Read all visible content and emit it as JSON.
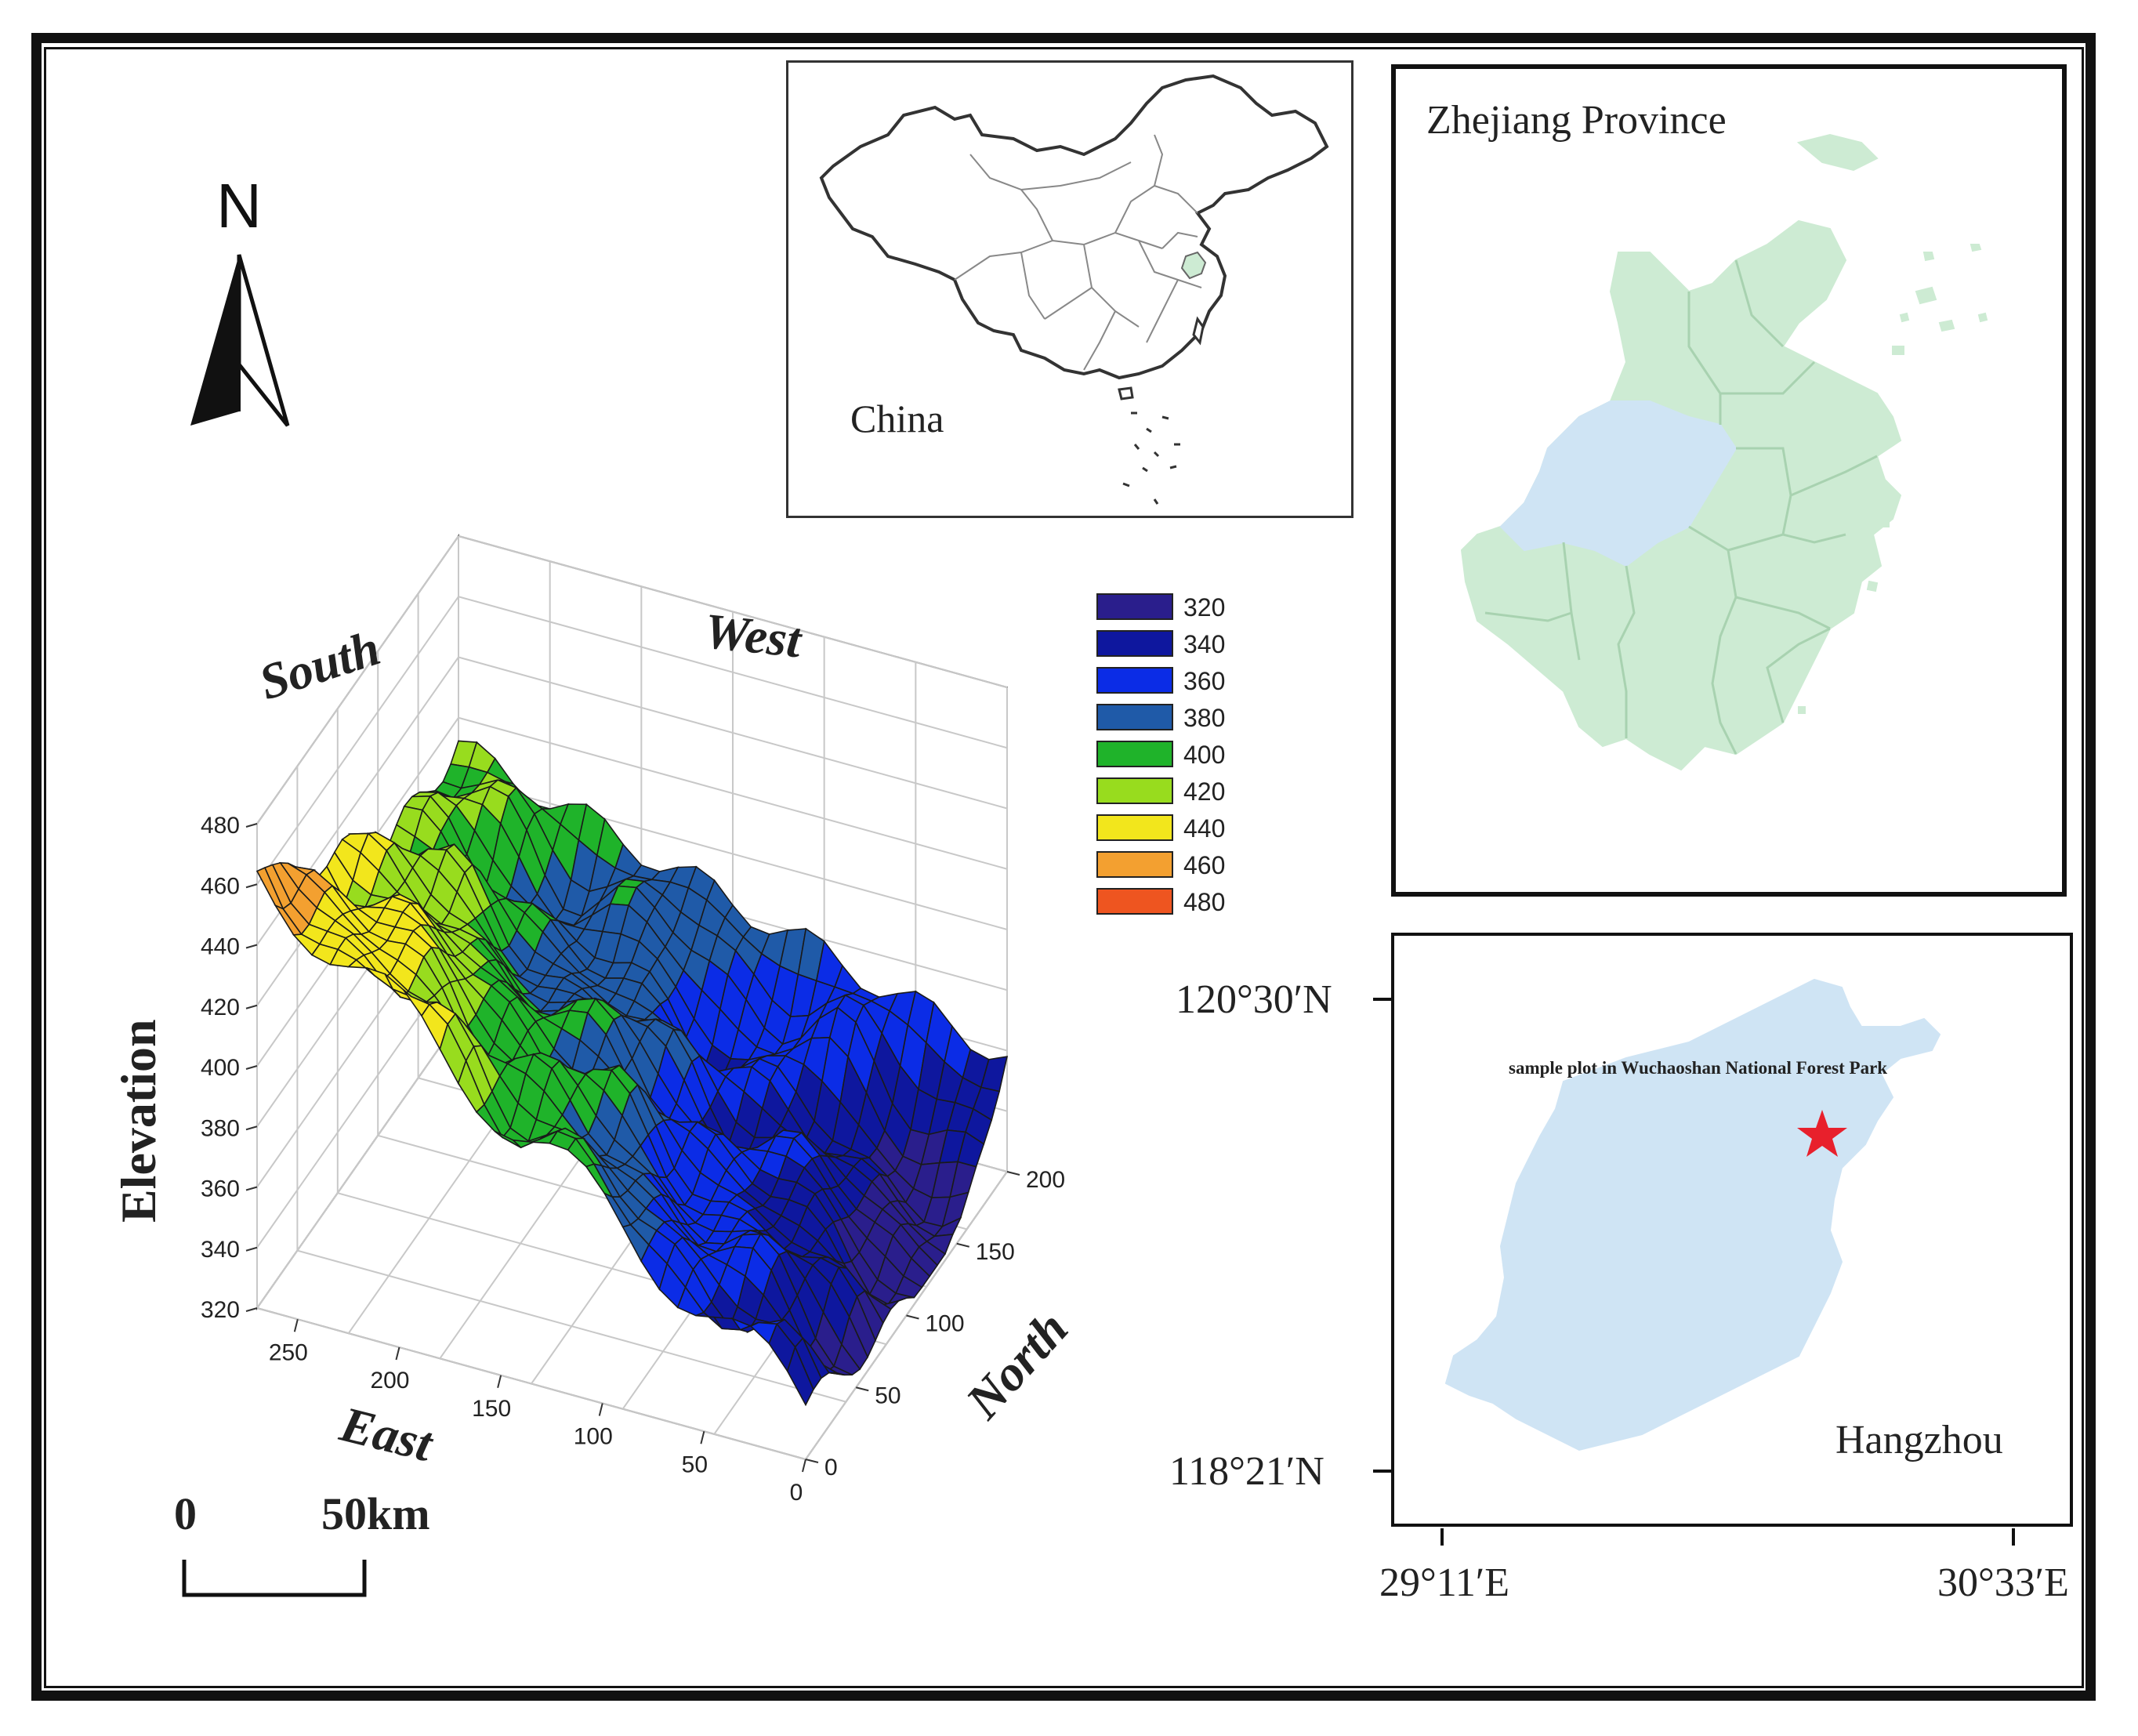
{
  "north_arrow": {
    "letter": "N"
  },
  "scale_bar": {
    "start_label": "0",
    "end_label": "50km"
  },
  "china_inset": {
    "label": "China"
  },
  "zhejiang_inset": {
    "label": "Zhejiang Province"
  },
  "hangzhou_inset": {
    "label": "Hangzhou",
    "site_label": "sample plot in Wuchaoshan National Forest Park",
    "lat_ticks": [
      "120°30′N",
      "118°21′N"
    ],
    "lon_ticks": [
      "29°11′E",
      "30°33′E"
    ],
    "marker_color": "#e8202c"
  },
  "colors": {
    "frame": "#111111",
    "zhejiang_fill": "#cdebd3",
    "hangzhou_fill": "#cfe4f4"
  },
  "chart_data": {
    "type": "surface",
    "zlabel": "Elevation",
    "direction_labels": {
      "south": "South",
      "west": "West",
      "east": "East",
      "north": "North"
    },
    "z_range": [
      320,
      480
    ],
    "z_ticks": [
      "320",
      "340",
      "360",
      "380",
      "400",
      "420",
      "440",
      "460",
      "480"
    ],
    "east_ticks": [
      "0",
      "50",
      "100",
      "150",
      "200",
      "250"
    ],
    "north_ticks": [
      "0",
      "50",
      "100",
      "150",
      "200"
    ],
    "legend": [
      {
        "value": "320",
        "color": "#2a1e8c"
      },
      {
        "value": "340",
        "color": "#0e179e"
      },
      {
        "value": "360",
        "color": "#0b2ce6"
      },
      {
        "value": "380",
        "color": "#1f5aa8"
      },
      {
        "value": "400",
        "color": "#1fb32a"
      },
      {
        "value": "420",
        "color": "#98dc1e"
      },
      {
        "value": "440",
        "color": "#f2e61c"
      },
      {
        "value": "460",
        "color": "#f3a030"
      },
      {
        "value": "480",
        "color": "#ee5520"
      }
    ],
    "grid": true
  }
}
